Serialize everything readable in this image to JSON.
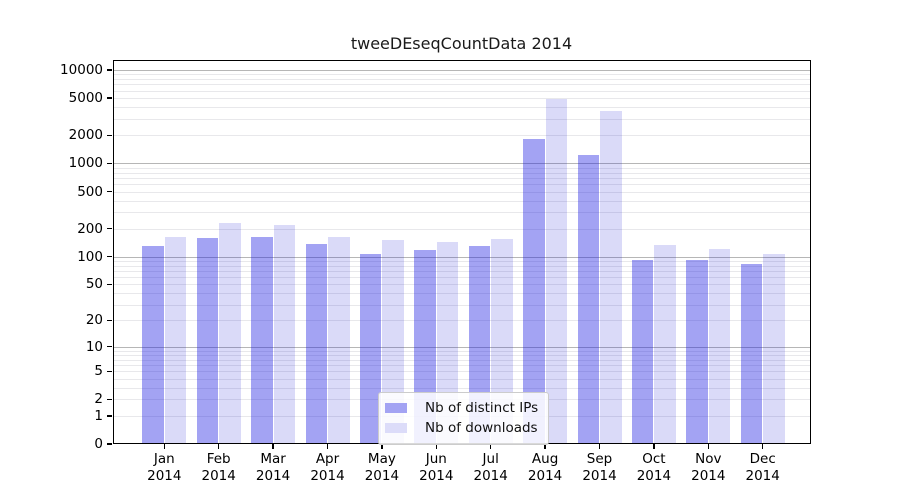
{
  "chart_data": {
    "type": "bar",
    "title": "tweeDEseqCountData 2014",
    "year_label": "2014",
    "categories": [
      "Jan",
      "Feb",
      "Mar",
      "Apr",
      "May",
      "Jun",
      "Jul",
      "Aug",
      "Sep",
      "Oct",
      "Nov",
      "Dec"
    ],
    "series": [
      {
        "name": "Nb of distinct IPs",
        "fill": "rgba(25,25,225,0.40)",
        "legend_color": "#a3a3f3",
        "values": [
          131,
          157,
          164,
          136,
          108,
          118,
          131,
          1830,
          1230,
          92,
          93,
          84
        ]
      },
      {
        "name": "Nb of downloads",
        "fill": "rgba(20,20,210,0.155)",
        "legend_color": "#dcdcf9",
        "values": [
          162,
          228,
          217,
          161,
          151,
          142,
          156,
          4950,
          3680,
          135,
          122,
          106
        ]
      }
    ],
    "yscale": "log1p",
    "ylim": [
      0,
      12800
    ],
    "yticks": [
      10000,
      5000,
      2000,
      1000,
      500,
      200,
      100,
      50,
      20,
      10,
      5,
      2,
      1,
      0
    ],
    "grid": {
      "major_lines": [
        10,
        100,
        1000,
        10000
      ],
      "minor_multipliers": [
        1,
        2,
        3,
        4,
        5,
        6,
        7,
        8,
        9
      ],
      "minor_decades": [
        1,
        10,
        100,
        1000
      ]
    },
    "legend": {
      "position": "bottom-center"
    },
    "colors": {
      "major_grid": "#b6b6b6",
      "minor_grid": "#e8e8eb",
      "axis": "#000000",
      "background": "#ffffff",
      "title_color": "#1a1a1a"
    }
  }
}
